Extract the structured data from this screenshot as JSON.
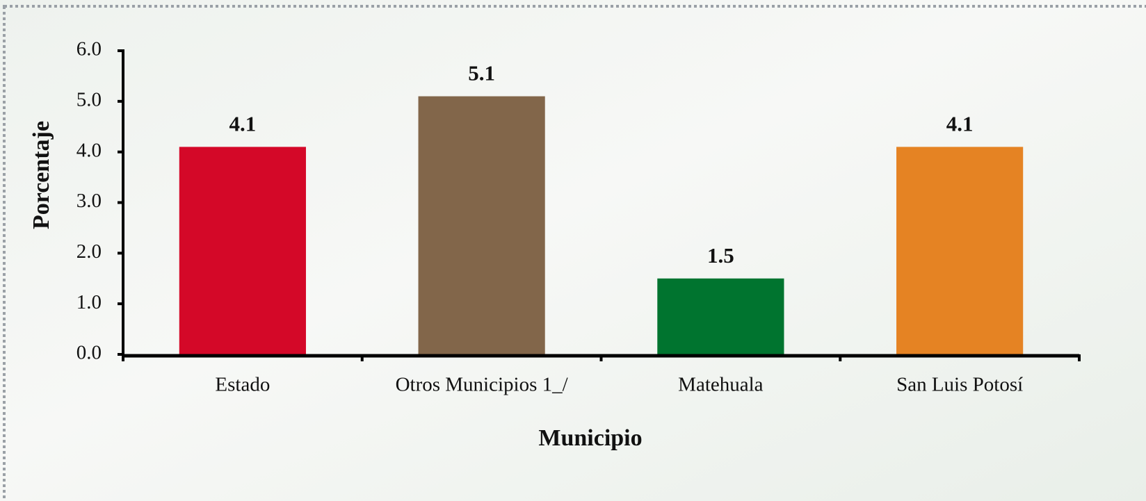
{
  "chart_data": {
    "type": "bar",
    "categories": [
      "Estado",
      "Otros Municipios 1_/",
      "Matehuala",
      "San Luis Potosí"
    ],
    "values": [
      4.1,
      5.1,
      1.5,
      4.1
    ],
    "colors": [
      "#d40828",
      "#82664a",
      "#00742f",
      "#e58323"
    ],
    "xlabel": "Municipio",
    "ylabel": "Porcentaje",
    "ylim": [
      0,
      6
    ],
    "yticks": [
      {
        "value": 0,
        "label": "0.0"
      },
      {
        "value": 1,
        "label": "1.0"
      },
      {
        "value": 2,
        "label": "2.0"
      },
      {
        "value": 3,
        "label": "3.0"
      },
      {
        "value": 4,
        "label": "4.0"
      },
      {
        "value": 5,
        "label": "5.0"
      },
      {
        "value": 6,
        "label": "6.0"
      }
    ],
    "grid": false
  }
}
